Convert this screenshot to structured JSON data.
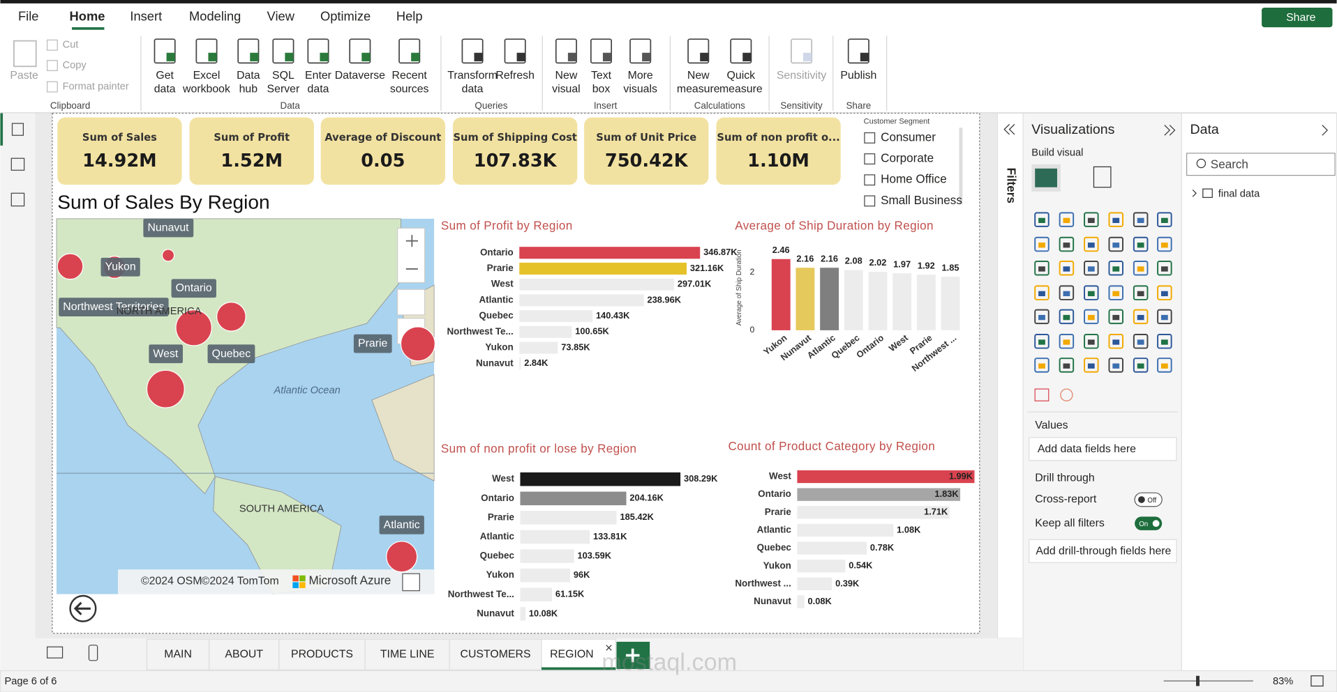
{
  "ribbon": {
    "tabs": [
      "File",
      "Home",
      "Insert",
      "Modeling",
      "View",
      "Optimize",
      "Help"
    ],
    "share": "Share",
    "groups": [
      {
        "label": "Clipboard",
        "buttons": [
          [
            "Paste"
          ],
          [
            "Cut"
          ],
          [
            "Copy"
          ],
          [
            "Format painter"
          ]
        ]
      },
      {
        "label": "Data",
        "buttons": [
          [
            "Get",
            "data"
          ],
          [
            "Excel",
            "workbook"
          ],
          [
            "Data",
            "hub"
          ],
          [
            "SQL",
            "Server"
          ],
          [
            "Enter",
            "data"
          ],
          [
            "Dataverse"
          ],
          [
            "Recent",
            "sources"
          ]
        ]
      },
      {
        "label": "Queries",
        "buttons": [
          [
            "Transform",
            "data"
          ],
          [
            "Refresh"
          ]
        ]
      },
      {
        "label": "Insert",
        "buttons": [
          [
            "New",
            "visual"
          ],
          [
            "Text",
            "box"
          ],
          [
            "More",
            "visuals"
          ]
        ]
      },
      {
        "label": "Calculations",
        "buttons": [
          [
            "New",
            "measure"
          ],
          [
            "Quick",
            "measure"
          ]
        ]
      },
      {
        "label": "Sensitivity",
        "buttons": [
          [
            "Sensitivity"
          ]
        ]
      },
      {
        "label": "Share",
        "buttons": [
          [
            "Publish"
          ]
        ]
      }
    ]
  },
  "kpis": [
    {
      "label": "Sum of Sales",
      "value": "14.92M"
    },
    {
      "label": "Sum of Profit",
      "value": "1.52M"
    },
    {
      "label": "Average of Discount",
      "value": "0.05"
    },
    {
      "label": "Sum of Shipping Cost",
      "value": "107.83K"
    },
    {
      "label": "Sum of Unit Price",
      "value": "750.42K"
    },
    {
      "label": "Sum of non profit o...",
      "value": "1.10M"
    }
  ],
  "slicer": {
    "title": "Customer Segment",
    "options": [
      "Consumer",
      "Corporate",
      "Home Office",
      "Small Business"
    ]
  },
  "map": {
    "title": "Sum of Sales By Region",
    "regions": [
      "Nunavut",
      "Yukon",
      "Ontario",
      "Northwest Territories",
      "West",
      "Quebec",
      "Prarie",
      "Atlantic"
    ],
    "places": [
      "NORTH AMERICA",
      "Atlantic Ocean",
      "SOUTH AMERICA"
    ],
    "attribution": [
      "©2024 OSM",
      "©2024 TomTom",
      "Microsoft Azure"
    ]
  },
  "chart_data": [
    {
      "type": "bar",
      "orientation": "horizontal",
      "title": "Sum of Profit by Region",
      "categories": [
        "Ontario",
        "Prarie",
        "West",
        "Atlantic",
        "Quebec",
        "Northwest Te...",
        "Yukon",
        "Nunavut"
      ],
      "values": [
        346870,
        321160,
        297010,
        238960,
        140430,
        100650,
        73850,
        2840
      ],
      "value_labels": [
        "346.87K",
        "321.16K",
        "297.01K",
        "238.96K",
        "140.43K",
        "100.65K",
        "73.85K",
        "2.84K"
      ],
      "colors": [
        "#d9434f",
        "#e6c229",
        "#ececec",
        "#ececec",
        "#ececec",
        "#ececec",
        "#ececec",
        "#ececec"
      ]
    },
    {
      "type": "bar",
      "orientation": "vertical",
      "title": "Average of Ship Duration by Region",
      "y_label": "Average of Ship Duration",
      "categories": [
        "Yukon",
        "Nunavut",
        "Atlantic",
        "Quebec",
        "Ontario",
        "West",
        "Prarie",
        "Northwest ..."
      ],
      "values": [
        2.46,
        2.16,
        2.16,
        2.08,
        2.02,
        1.97,
        1.92,
        1.85
      ],
      "colors": [
        "#d9434f",
        "#e6c95c",
        "#7f7f7f",
        "#ececec",
        "#ececec",
        "#ececec",
        "#ececec",
        "#ececec"
      ],
      "ylim": [
        0,
        2.5
      ],
      "yticks": [
        0,
        2
      ]
    },
    {
      "type": "bar",
      "orientation": "horizontal",
      "title": "Sum of non profit or lose by Region",
      "categories": [
        "West",
        "Ontario",
        "Prarie",
        "Atlantic",
        "Quebec",
        "Yukon",
        "Northwest Te...",
        "Nunavut"
      ],
      "values": [
        308290,
        204160,
        185420,
        133810,
        103590,
        96000,
        61150,
        10080
      ],
      "value_labels": [
        "308.29K",
        "204.16K",
        "185.42K",
        "133.81K",
        "103.59K",
        "96K",
        "61.15K",
        "10.08K"
      ],
      "colors": [
        "#1a1a1a",
        "#8c8c8c",
        "#ececec",
        "#ececec",
        "#ececec",
        "#ececec",
        "#ececec",
        "#ececec"
      ]
    },
    {
      "type": "bar",
      "orientation": "horizontal",
      "title": "Count of Product Category by Region",
      "categories": [
        "West",
        "Ontario",
        "Prarie",
        "Atlantic",
        "Quebec",
        "Yukon",
        "Northwest ...",
        "Nunavut"
      ],
      "values": [
        1990,
        1830,
        1710,
        1080,
        780,
        540,
        390,
        80
      ],
      "value_labels": [
        "1.99K",
        "1.83K",
        "1.71K",
        "1.08K",
        "0.78K",
        "0.54K",
        "0.39K",
        "0.08K"
      ],
      "colors": [
        "#d9434f",
        "#a6a6a6",
        "#ececec",
        "#ececec",
        "#ececec",
        "#ececec",
        "#ececec",
        "#ececec"
      ]
    }
  ],
  "filters": "Filters",
  "visualizations": {
    "title": "Visualizations",
    "build": "Build visual",
    "values": "Values",
    "add_fields": "Add data fields here",
    "drill": "Drill through",
    "cross_report": "Cross-report",
    "off": "Off",
    "keep_filters": "Keep all filters",
    "on": "On",
    "add_drill": "Add drill-through fields here"
  },
  "data_pane": {
    "title": "Data",
    "search": "Search",
    "table": "final data"
  },
  "pages": [
    "MAIN",
    "ABOUT",
    "PRODUCTS",
    "TIME LINE",
    "CUSTOMERS",
    "REGION"
  ],
  "status": {
    "page": "Page 6 of 6",
    "zoom": "83%"
  },
  "watermark": "mostaql.com"
}
